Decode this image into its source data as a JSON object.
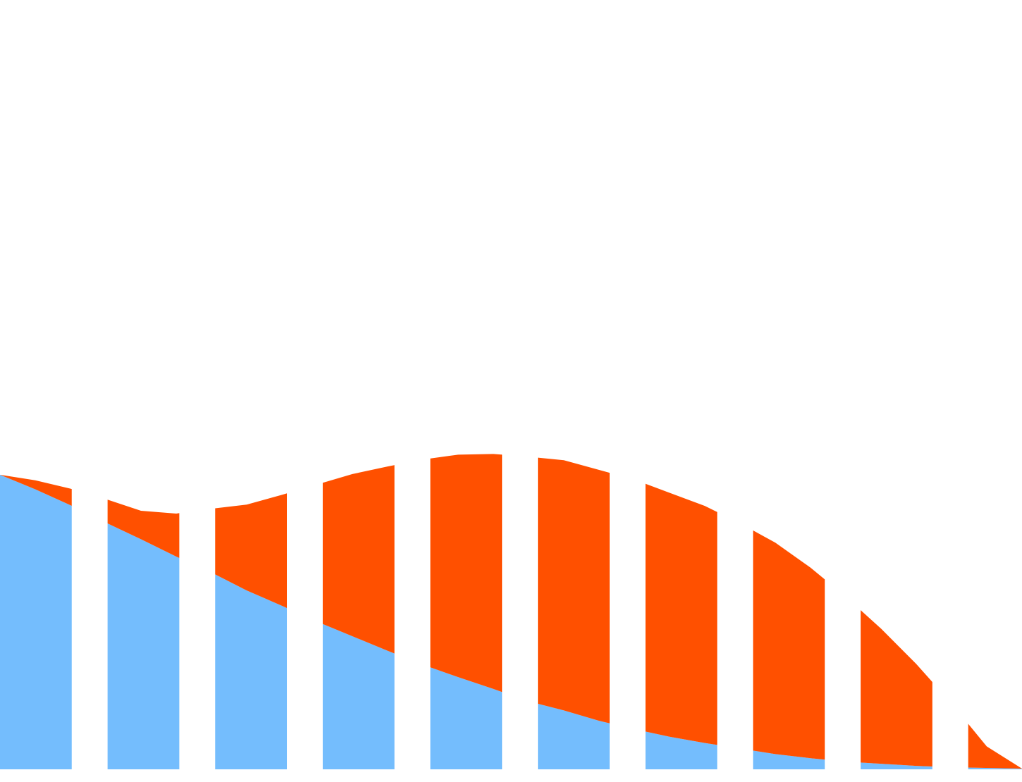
{
  "chart_data": {
    "type": "area",
    "x": [
      0,
      1,
      2,
      3,
      4,
      5,
      6,
      7,
      8,
      9,
      10,
      11,
      12,
      13,
      14,
      15,
      16,
      17,
      18,
      19,
      20,
      21,
      22,
      23,
      24,
      25,
      26,
      27,
      28,
      29
    ],
    "xlim": [
      0,
      29
    ],
    "ylim": [
      0,
      1110
    ],
    "grid": false,
    "legend": "none",
    "bar_bands": 10,
    "series": [
      {
        "values": [
          425,
          404,
          381,
          356,
          332,
          307,
          284,
          258,
          236,
          213,
          192,
          171,
          151,
          133,
          116,
          98,
          85,
          70,
          58,
          47,
          38,
          30,
          22,
          16,
          11,
          8,
          5,
          3,
          2,
          1
        ],
        "color": "#74bdfd"
      },
      {
        "values": [
          0,
          13,
          24,
          34,
          41,
          62,
          92,
          124,
          160,
          198,
          234,
          266,
          296,
          321,
          339,
          353,
          361,
          362,
          360,
          352,
          342,
          325,
          305,
          275,
          238,
          195,
          147,
          92,
          31,
          0
        ],
        "color": "#ff5000"
      }
    ],
    "colors": {
      "base": "#74bdfd",
      "upper": "#ff5000",
      "background": "#ffffff"
    }
  }
}
